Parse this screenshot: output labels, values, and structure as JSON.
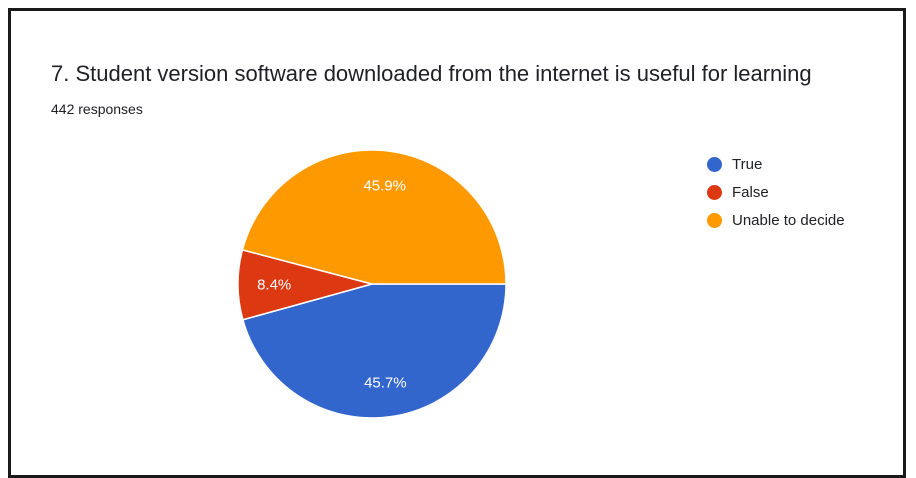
{
  "chart_data": {
    "type": "pie",
    "title": "7. Student version software downloaded from the internet is useful for learning",
    "subtitle": "442 responses",
    "slices": [
      {
        "label": "True",
        "value": 45.7,
        "display": "45.7%",
        "color": "#3366cc"
      },
      {
        "label": "False",
        "value": 8.4,
        "display": "8.4%",
        "color": "#dc3912"
      },
      {
        "label": "Unable to decide",
        "value": 45.9,
        "display": "45.9%",
        "color": "#ff9900"
      }
    ],
    "legend_position": "right"
  }
}
